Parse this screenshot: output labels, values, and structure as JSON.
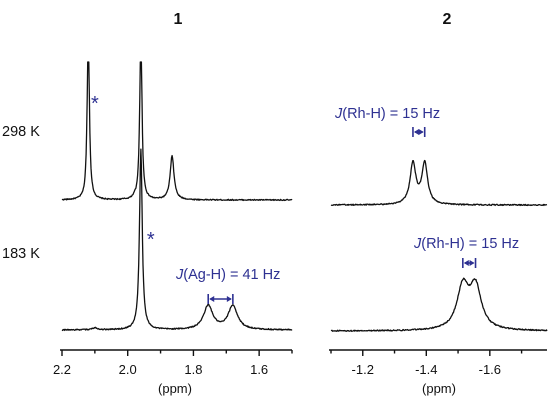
{
  "chart_data": [
    {
      "type": "line",
      "panel_label": "1",
      "xlabel": "(ppm)",
      "xlim": [
        2.2,
        1.5
      ],
      "x_reversed": true,
      "xticks": [
        "2.2",
        "2.0",
        "1.8",
        "1.6"
      ],
      "grid": false,
      "series": [
        {
          "name": "298 K",
          "peaks": [
            {
              "ppm": 2.12,
              "height": 1.8,
              "width": 0.004,
              "marked": true,
              "clipped": true
            },
            {
              "ppm": 1.96,
              "height": 1.8,
              "width": 0.004,
              "clipped": true
            },
            {
              "ppm": 1.865,
              "height": 0.46,
              "width": 0.007
            },
            {
              "ppm": 1.98,
              "height": 0.02,
              "width": 0.004
            }
          ]
        },
        {
          "name": "183 K",
          "peaks": [
            {
              "ppm": 1.96,
              "height": 1.8,
              "width": 0.005,
              "marked": true,
              "clipped": true
            },
            {
              "ppm": 1.755,
              "height": 0.24,
              "width": 0.017
            },
            {
              "ppm": 1.68,
              "height": 0.24,
              "width": 0.017
            },
            {
              "ppm": 2.1,
              "height": 0.02,
              "width": 0.01
            }
          ]
        }
      ],
      "annotations": [
        {
          "text": "*",
          "series": "298 K",
          "ppm": 2.1
        },
        {
          "text": "*",
          "series": "183 K",
          "ppm": 1.93
        },
        {
          "text_italic": "J",
          "text_rest": "(Ag-H) = 41 Hz",
          "series": "183 K",
          "between_ppm": [
            1.755,
            1.68
          ]
        }
      ]
    },
    {
      "type": "line",
      "panel_label": "2",
      "xlabel": "(ppm)",
      "xlim": [
        -1.1,
        -1.78
      ],
      "x_reversed": true,
      "xticks": [
        "-1.2",
        "-1.4",
        "-1.6"
      ],
      "grid": false,
      "series": [
        {
          "name": "298 K",
          "peaks": [
            {
              "ppm": -1.358,
              "height": 0.43,
              "width": 0.011
            },
            {
              "ppm": -1.395,
              "height": 0.43,
              "width": 0.011
            }
          ]
        },
        {
          "name": "183 K",
          "peaks": [
            {
              "ppm": -1.515,
              "height": 0.42,
              "width": 0.022
            },
            {
              "ppm": -1.555,
              "height": 0.42,
              "width": 0.022
            }
          ]
        }
      ],
      "annotations": [
        {
          "text_italic": "J",
          "text_rest": "(Rh-H) = 15 Hz",
          "series": "298 K",
          "between_ppm": [
            -1.358,
            -1.395
          ]
        },
        {
          "text_italic": "J",
          "text_rest": "(Rh-H) = 15 Hz",
          "series": "183 K",
          "between_ppm": [
            -1.515,
            -1.555
          ]
        }
      ]
    }
  ],
  "colors": {
    "trace": "#111111",
    "annotation": "#2e3192"
  }
}
